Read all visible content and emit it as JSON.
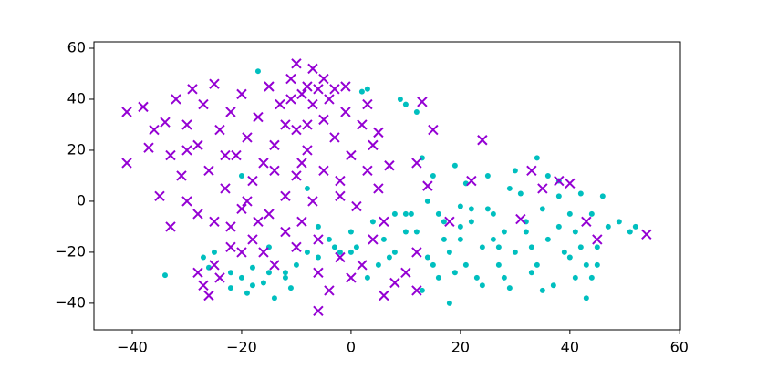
{
  "chart_data": {
    "type": "scatter",
    "xlim": [
      -47,
      60.2
    ],
    "ylim": [
      -50.4,
      62.5
    ],
    "xticks": [
      {
        "value": -40,
        "label": "−40"
      },
      {
        "value": -20,
        "label": "−20"
      },
      0,
      20,
      40,
      60
    ],
    "yticks": [
      {
        "value": -40,
        "label": "−40"
      },
      {
        "value": -20,
        "label": "−20"
      },
      0,
      20,
      40,
      60
    ],
    "series": [
      {
        "color": "#00bfbf",
        "marker": "o",
        "x": [
          -34,
          -27,
          -26,
          -25,
          -22,
          -20,
          -19,
          -18,
          -16,
          -15,
          -14,
          -12,
          -11,
          -10,
          -17,
          -20,
          -15,
          -8,
          -6,
          -4,
          -2,
          0,
          1,
          2,
          3,
          4,
          5,
          6,
          8,
          9,
          10,
          11,
          12,
          13,
          14,
          15,
          16,
          17,
          18,
          19,
          20,
          21,
          22,
          23,
          24,
          25,
          26,
          27,
          28,
          29,
          30,
          31,
          32,
          33,
          34,
          35,
          36,
          37,
          38,
          39,
          40,
          41,
          42,
          43,
          44,
          45,
          46,
          47,
          49,
          51,
          52,
          43,
          41,
          36,
          30,
          25,
          20,
          18,
          15,
          12,
          10,
          7,
          3,
          0,
          -3,
          -6,
          19,
          22,
          26,
          32,
          38,
          44,
          40,
          34,
          28,
          24,
          16,
          20,
          10,
          14,
          17,
          29,
          35,
          38,
          42,
          45,
          33,
          27,
          21,
          13,
          8,
          -8,
          -12,
          -22,
          -18
        ],
        "y": [
          -29,
          -22,
          -26,
          -20,
          -34,
          -30,
          -36,
          -26,
          -32,
          -28,
          -38,
          -30,
          -34,
          -25,
          51,
          10,
          -18,
          5,
          -10,
          -15,
          -20,
          -12,
          -18,
          43,
          44,
          -8,
          -25,
          -15,
          -20,
          40,
          38,
          -5,
          35,
          17,
          -22,
          10,
          -5,
          -15,
          -40,
          -28,
          -10,
          7,
          -3,
          -30,
          -18,
          10,
          -5,
          -25,
          -12,
          -34,
          -20,
          3,
          -8,
          -28,
          17,
          -3,
          -15,
          -33,
          8,
          -20,
          -5,
          -12,
          3,
          -25,
          -30,
          -18,
          2,
          -10,
          -8,
          -12,
          -10,
          -38,
          -30,
          10,
          12,
          -3,
          -2,
          -20,
          -25,
          -12,
          -5,
          -22,
          -30,
          -20,
          -18,
          -22,
          14,
          -8,
          -15,
          -12,
          -10,
          -5,
          -22,
          -25,
          -30,
          -33,
          -30,
          -15,
          -12,
          0,
          -8,
          5,
          -35,
          2,
          -18,
          -25,
          -18,
          -18,
          -25,
          -35,
          -5,
          -20,
          -28,
          -28,
          -33
        ]
      },
      {
        "color": "#9400d3",
        "marker": "x",
        "x": [
          -41,
          -41,
          -38,
          -37,
          -36,
          -35,
          -34,
          -33,
          -32,
          -31,
          -30,
          -30,
          -29,
          -28,
          -28,
          -27,
          -26,
          -25,
          -25,
          -24,
          -23,
          -22,
          -22,
          -21,
          -20,
          -20,
          -19,
          -18,
          -18,
          -17,
          -16,
          -15,
          -15,
          -14,
          -13,
          -12,
          -12,
          -11,
          -10,
          -10,
          -9,
          -9,
          -8,
          -8,
          -7,
          -7,
          -6,
          -6,
          -5,
          -5,
          -4,
          -3,
          -2,
          -1,
          0,
          1,
          2,
          3,
          4,
          5,
          6,
          -30,
          -28,
          -26,
          -24,
          -22,
          -27,
          -25,
          -20,
          -14,
          -10,
          -6,
          -4,
          -6,
          -2,
          0,
          2,
          4,
          6,
          8,
          10,
          12,
          12,
          13,
          15,
          12,
          14,
          18,
          22,
          24,
          31,
          33,
          35,
          38,
          40,
          43,
          45,
          54,
          -16,
          -12,
          -9,
          -3,
          -1,
          -33,
          -19,
          -17,
          -14,
          -23,
          -8,
          -11,
          -5,
          -7,
          -10,
          -2,
          3,
          5,
          7
        ],
        "y": [
          35,
          15,
          37,
          21,
          28,
          2,
          31,
          18,
          40,
          10,
          30,
          0,
          44,
          22,
          -5,
          38,
          12,
          46,
          -8,
          28,
          5,
          35,
          -10,
          18,
          42,
          -3,
          25,
          8,
          -15,
          33,
          15,
          45,
          -5,
          22,
          38,
          2,
          -12,
          48,
          28,
          10,
          42,
          -8,
          45,
          20,
          38,
          0,
          44,
          -15,
          32,
          12,
          40,
          25,
          8,
          35,
          18,
          -2,
          30,
          12,
          22,
          5,
          -8,
          20,
          -28,
          -37,
          -30,
          -18,
          -33,
          -25,
          -20,
          -25,
          -18,
          -28,
          -35,
          -43,
          -22,
          -30,
          -25,
          -15,
          -37,
          -32,
          -28,
          -35,
          -20,
          39,
          28,
          15,
          6,
          -8,
          8,
          24,
          -7,
          12,
          5,
          8,
          7,
          -8,
          -15,
          -13,
          -20,
          30,
          15,
          44,
          45,
          -10,
          0,
          -8,
          12,
          18,
          30,
          40,
          48,
          52,
          54,
          2,
          38,
          27,
          14
        ]
      }
    ]
  }
}
